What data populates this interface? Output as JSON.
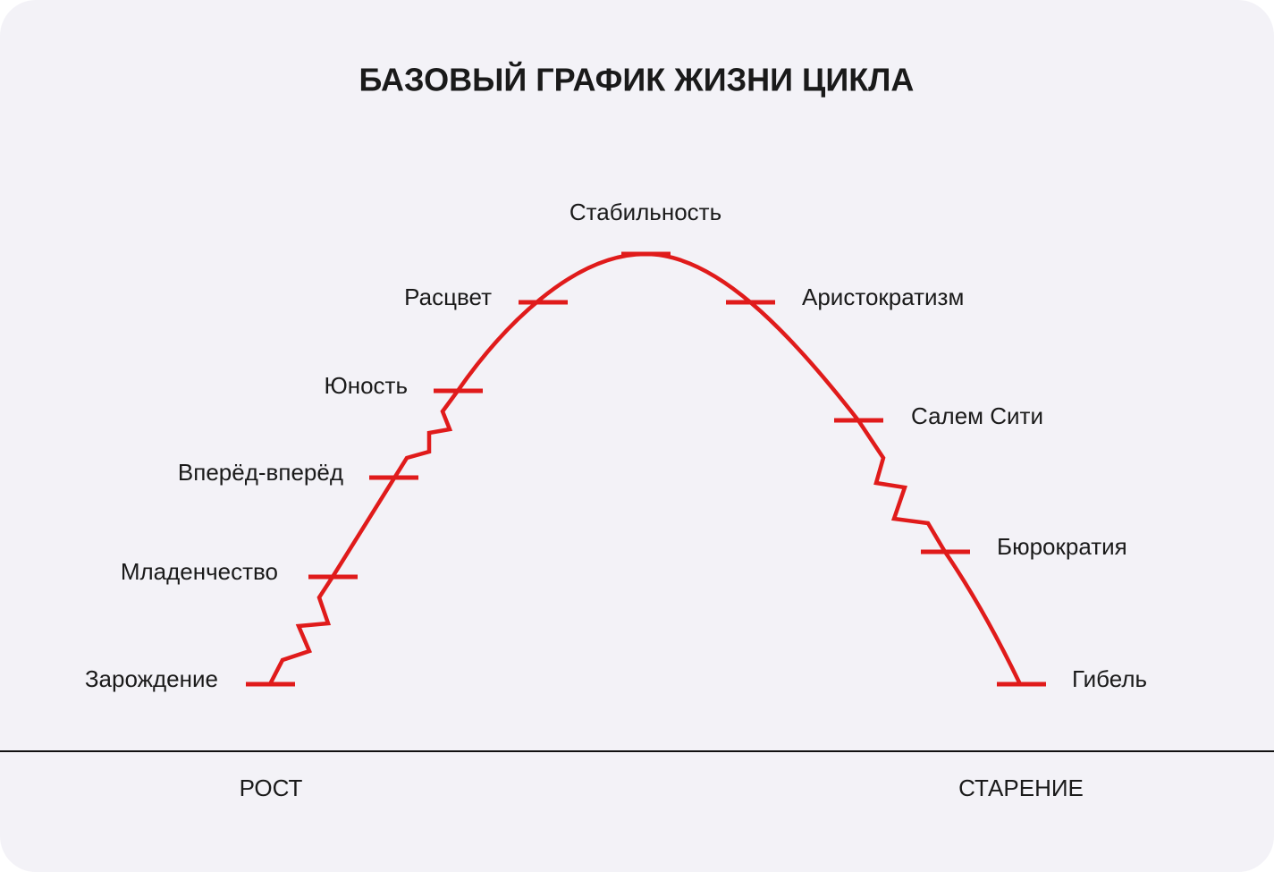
{
  "title": "БАЗОВЫЙ ГРАФИК ЖИЗНИ ЦИКЛА",
  "stages": [
    {
      "label": "Зарождение"
    },
    {
      "label": "Младенчество"
    },
    {
      "label": "Вперёд-вперёд"
    },
    {
      "label": "Юность"
    },
    {
      "label": "Расцвет"
    },
    {
      "label": "Стабильность"
    },
    {
      "label": "Аристократизм"
    },
    {
      "label": "Салем Сити"
    },
    {
      "label": "Бюрократия"
    },
    {
      "label": "Гибель"
    }
  ],
  "axis": {
    "left": "РОСТ",
    "right": "СТАРЕНИЕ"
  }
}
